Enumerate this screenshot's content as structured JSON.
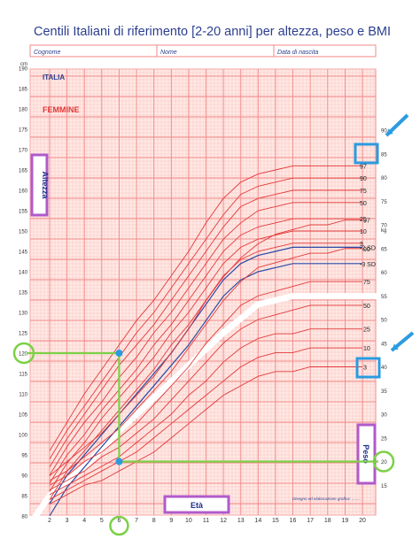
{
  "title": "Centili Italiani di riferimento [2-20 anni] per altezza, peso e BMI",
  "form_fields": [
    "Cognome",
    "Nome",
    "Data di nascita"
  ],
  "labels": {
    "country": "ITALIA",
    "sex": "FEMMINE",
    "height_axis": "Altezza",
    "weight_axis": "Peso",
    "age_axis": "Età",
    "height_unit": "cm",
    "weight_unit": "kg",
    "source_note": "Disegno ed elaborazione grafica: ........"
  },
  "colors": {
    "grid": "#f08a8a",
    "grid_minor": "#f9c4c4",
    "centile_line": "#e23a3a",
    "sd_line": "#2a4aa8",
    "title": "#2b3e8f",
    "highlight_box": "#b05acb",
    "guide_line": "#7cd046",
    "callout_box": "#2b9be0"
  },
  "chart_data": {
    "type": "line",
    "x_label": "Età",
    "x_range": [
      2,
      20
    ],
    "x_ticks": [
      2,
      3,
      4,
      5,
      6,
      7,
      8,
      9,
      10,
      11,
      12,
      13,
      14,
      15,
      16,
      17,
      18,
      19,
      20
    ],
    "height_axis": {
      "label": "Altezza",
      "unit": "cm",
      "range": [
        80,
        190
      ],
      "ticks": [
        80,
        85,
        90,
        95,
        100,
        105,
        110,
        115,
        120,
        125,
        130,
        135,
        140,
        145,
        150,
        155,
        160,
        165,
        170,
        175,
        180,
        185,
        190
      ]
    },
    "weight_axis": {
      "label": "Peso",
      "unit": "kg",
      "range": [
        10,
        90
      ],
      "ticks": [
        15,
        20,
        25,
        30,
        35,
        40,
        45,
        50,
        55,
        60,
        65,
        70,
        75,
        80,
        85,
        90
      ]
    },
    "height_centiles": [
      {
        "name": "97",
        "values": [
          96,
          103,
          110,
          116,
          122,
          128,
          133,
          139,
          145,
          152,
          158,
          162,
          164,
          165,
          166,
          166,
          166,
          166,
          166
        ]
      },
      {
        "name": "90",
        "values": [
          94,
          101,
          107,
          113,
          119,
          125,
          130,
          136,
          142,
          148,
          154,
          159,
          161,
          162,
          163,
          163,
          163,
          163,
          163
        ]
      },
      {
        "name": "75",
        "values": [
          92,
          99,
          105,
          111,
          117,
          122,
          127,
          133,
          139,
          145,
          151,
          156,
          158,
          159,
          160,
          160,
          160,
          160,
          160
        ]
      },
      {
        "name": "50",
        "values": [
          90,
          97,
          103,
          108,
          114,
          119,
          125,
          130,
          136,
          142,
          148,
          152,
          155,
          156,
          157,
          157,
          157,
          157,
          157
        ]
      },
      {
        "name": "25",
        "values": [
          88,
          95,
          100,
          106,
          111,
          116,
          122,
          127,
          133,
          139,
          145,
          149,
          151,
          152,
          153,
          153,
          153,
          153,
          153
        ]
      },
      {
        "name": "10",
        "values": [
          86,
          93,
          98,
          104,
          109,
          114,
          119,
          125,
          130,
          136,
          142,
          146,
          148,
          149,
          150,
          150,
          150,
          150,
          150
        ]
      },
      {
        "name": "3",
        "values": [
          84,
          91,
          96,
          101,
          106,
          111,
          116,
          122,
          127,
          133,
          139,
          143,
          145,
          146,
          147,
          147,
          147,
          147,
          147
        ]
      },
      {
        "name": "-2 SD",
        "values": [
          83,
          90,
          95,
          100,
          105,
          110,
          115,
          120,
          126,
          132,
          138,
          142,
          144,
          145,
          146,
          146,
          146,
          146,
          146
        ]
      },
      {
        "name": "-3 SD",
        "values": [
          80,
          87,
          92,
          97,
          102,
          107,
          112,
          117,
          122,
          128,
          134,
          138,
          140,
          141,
          142,
          142,
          142,
          142,
          142
        ]
      }
    ],
    "weight_centiles": [
      {
        "name": "97",
        "values": [
          17,
          20,
          23,
          26,
          30,
          34,
          38,
          43,
          48,
          54,
          59,
          63,
          66,
          68,
          69,
          70,
          70,
          71,
          71
        ]
      },
      {
        "name": "90",
        "values": [
          16,
          18,
          21,
          24,
          27,
          31,
          35,
          39,
          44,
          49,
          54,
          58,
          61,
          62,
          63,
          64,
          64,
          65,
          65
        ]
      },
      {
        "name": "75",
        "values": [
          15,
          17,
          20,
          22,
          25,
          28,
          32,
          36,
          40,
          45,
          49,
          53,
          55,
          56,
          57,
          58,
          58,
          58,
          58
        ]
      },
      {
        "name": "50",
        "values": [
          14,
          16,
          18,
          21,
          23,
          26,
          29,
          33,
          37,
          41,
          45,
          48,
          50,
          51,
          52,
          53,
          53,
          53,
          53
        ]
      },
      {
        "name": "25",
        "values": [
          13,
          15,
          17,
          19,
          21,
          24,
          27,
          30,
          34,
          37,
          41,
          44,
          46,
          47,
          47,
          48,
          48,
          48,
          48
        ]
      },
      {
        "name": "10",
        "values": [
          12,
          14,
          16,
          18,
          20,
          22,
          25,
          28,
          31,
          34,
          37,
          40,
          42,
          43,
          43,
          44,
          44,
          44,
          44
        ]
      },
      {
        "name": "3",
        "values": [
          11,
          13,
          15,
          16,
          18,
          20,
          22,
          25,
          28,
          31,
          34,
          36,
          38,
          39,
          39,
          40,
          40,
          40,
          40
        ]
      }
    ],
    "annotations": {
      "reference_age": 6,
      "reference_height": 120,
      "reference_weight": 20
    }
  }
}
